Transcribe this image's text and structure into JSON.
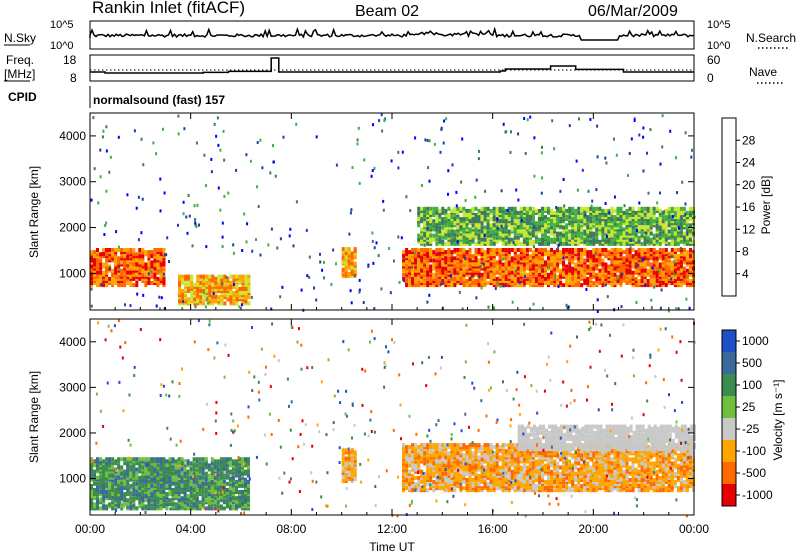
{
  "header": {
    "station": "Rankin Inlet (fitACF)",
    "beam": "Beam 02",
    "date": "06/Mar/2009"
  },
  "noise_panel": {
    "left_label": "N.Sky",
    "left_ticks": [
      "10^5",
      "10^0"
    ],
    "right_label": "N.Search",
    "right_ticks": [
      "10^5",
      "10^0"
    ]
  },
  "freq_panel": {
    "left_label_line1": "Freq.",
    "left_label_line2": "[MHz]",
    "left_ticks": [
      "18",
      "8"
    ],
    "right_label": "Nave",
    "right_ticks": [
      "60",
      "0"
    ]
  },
  "cpid_panel": {
    "label": "CPID",
    "text": "normalsound (fast) 157"
  },
  "colors": {
    "power_scale": [
      "#0000ff",
      "#1f3fa8",
      "#3c7a5a",
      "#40b040",
      "#c8e632",
      "#ffa500",
      "#ff6600",
      "#e60000"
    ],
    "velocity_scale": [
      "#2050c8",
      "#3a6a9a",
      "#3c8c50",
      "#70c040",
      "#c8c8c8",
      "#ffa500",
      "#ff6a00",
      "#e60000"
    ]
  },
  "chart_data": [
    {
      "type": "heatmap",
      "name": "power",
      "ylabel": "Slant Range [km]",
      "yticks": [
        "1000",
        "2000",
        "3000",
        "4000"
      ],
      "ylim": [
        200,
        4500
      ],
      "colorbar_label": "Power [dB]",
      "colorbar_ticks": [
        "4",
        "8",
        "12",
        "16",
        "20",
        "24",
        "28"
      ],
      "colorbar_range": [
        0,
        32
      ],
      "features": [
        {
          "t0": 0.0,
          "t1": 3.0,
          "r0": 700,
          "r1": 1500,
          "db": 26
        },
        {
          "t0": 3.5,
          "t1": 6.3,
          "r0": 300,
          "r1": 900,
          "db": 22
        },
        {
          "t0": 10.0,
          "t1": 10.5,
          "r0": 900,
          "r1": 1500,
          "db": 22
        },
        {
          "t0": 12.4,
          "t1": 24.0,
          "r0": 700,
          "r1": 1500,
          "db": 26
        },
        {
          "t0": 13.0,
          "t1": 24.0,
          "r0": 1600,
          "r1": 2400,
          "db": 12
        }
      ]
    },
    {
      "type": "heatmap",
      "name": "velocity",
      "ylabel": "Slant Range [km]",
      "yticks": [
        "1000",
        "2000",
        "3000",
        "4000"
      ],
      "ylim": [
        200,
        4500
      ],
      "colorbar_label": "Velocity [m s⁻¹]",
      "colorbar_ticks": [
        "1000",
        "500",
        "100",
        "25",
        "-25",
        "-100",
        "-500",
        "-1000"
      ],
      "features": [
        {
          "t0": 0.0,
          "t1": 6.3,
          "r0": 300,
          "r1": 1400,
          "v": 100
        },
        {
          "t0": 10.0,
          "t1": 10.5,
          "r0": 900,
          "r1": 1600,
          "v": -100
        },
        {
          "t0": 12.4,
          "t1": 24.0,
          "r0": 700,
          "r1": 1700,
          "v": -100
        },
        {
          "t0": 17.0,
          "t1": 24.0,
          "r0": 1600,
          "r1": 2100,
          "v": 0
        }
      ]
    }
  ],
  "x_axis": {
    "xlabel": "Time UT",
    "ticks": [
      "00:00",
      "04:00",
      "08:00",
      "12:00",
      "16:00",
      "20:00",
      "00:00"
    ],
    "xlim": [
      0,
      24
    ]
  }
}
